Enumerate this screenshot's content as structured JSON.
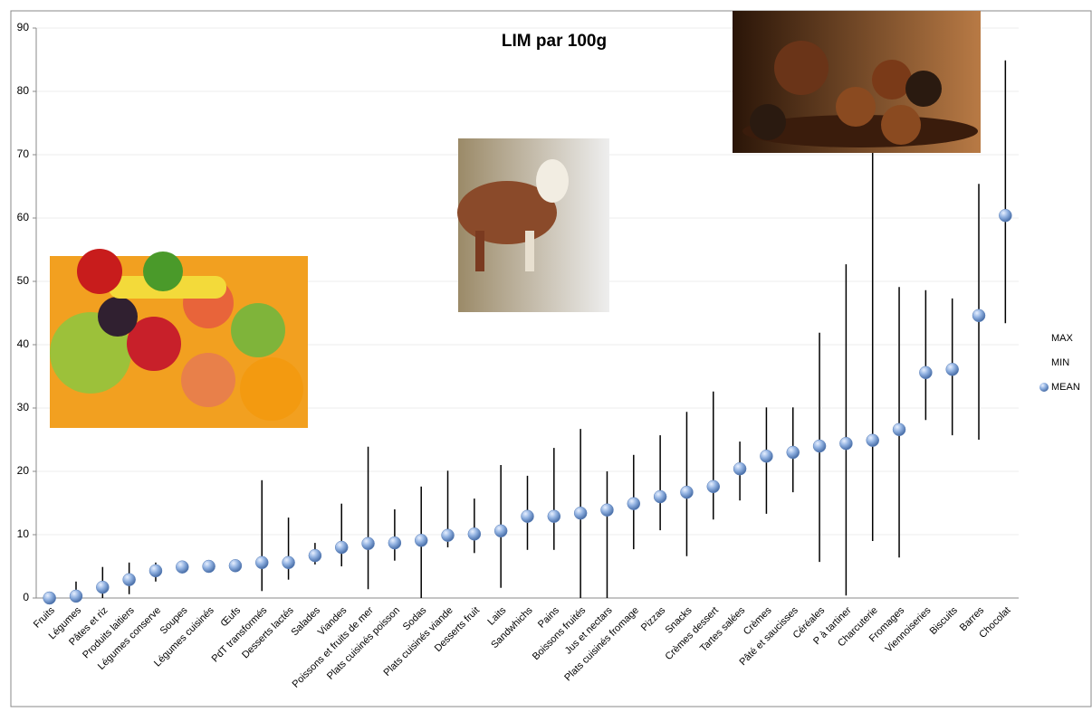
{
  "chart_data": {
    "type": "hilo",
    "title": "LIM par 100g",
    "categories": [
      "Fruits",
      "Légumes",
      "Pâtes et riz",
      "Produits laitiers",
      "Légumes conserve",
      "Soupes",
      "Légumes cuisinés",
      "Œufs",
      "PdT transformés",
      "Desserts lactés",
      "Salades",
      "Viandes",
      "Poissons et fruits de mer",
      "Plats cuisinés poisson",
      "Sodas",
      "Plats cuisinés viande",
      "Desserts fruit",
      "Laits",
      "Sandwhichs",
      "Pains",
      "Boissons fruités",
      "Jus et nectars",
      "Plats cuisinés fromage",
      "Pizzas",
      "Snacks",
      "Crèmes dessert",
      "Tartes salées",
      "Crèmes",
      "Pâté et saucisses",
      "Céréales",
      "P à tartiner",
      "Charcuterie",
      "Fromages",
      "Viennoiseries",
      "Biscuits",
      "Barres",
      "Chocolat"
    ],
    "series": [
      {
        "name": "MAX",
        "color": "#000000",
        "values": [
          0,
          2.6,
          4.9,
          5.6,
          5.6,
          5.0,
          5.2,
          5.3,
          18.6,
          12.7,
          8.7,
          14.9,
          23.9,
          14.0,
          17.6,
          20.1,
          15.7,
          21.0,
          19.3,
          23.7,
          26.7,
          20.0,
          22.6,
          25.7,
          29.4,
          32.6,
          24.7,
          30.1,
          30.1,
          41.9,
          52.7,
          72,
          49.1,
          48.6,
          47.3,
          65.4,
          84.9
        ]
      },
      {
        "name": "MIN",
        "color": "#000000",
        "values": [
          0,
          0,
          0,
          0.6,
          2.6,
          4.8,
          4.9,
          5.0,
          1.1,
          2.9,
          5.3,
          5.0,
          1.4,
          5.9,
          0,
          8.0,
          7.1,
          1.6,
          7.6,
          7.6,
          0,
          0,
          7.7,
          10.7,
          6.6,
          12.4,
          15.4,
          13.3,
          16.7,
          5.7,
          0.4,
          9.0,
          6.4,
          28.1,
          25.7,
          25.0,
          43.4
        ]
      },
      {
        "name": "MEAN",
        "color": "#7fa6dc",
        "values": [
          0,
          0.3,
          1.7,
          2.9,
          4.3,
          4.9,
          5.0,
          5.1,
          5.6,
          5.6,
          6.7,
          8.0,
          8.6,
          8.7,
          9.1,
          9.9,
          10.1,
          10.6,
          12.9,
          12.9,
          13.4,
          13.9,
          14.9,
          16.0,
          16.7,
          17.6,
          20.4,
          22.4,
          23.0,
          24.0,
          24.4,
          24.9,
          26.6,
          35.6,
          36.1,
          44.6,
          60.4
        ]
      }
    ],
    "ylim": [
      0,
      90
    ],
    "yticks": [
      0,
      10,
      20,
      30,
      40,
      50,
      60,
      70,
      80,
      90
    ],
    "grid": true,
    "legend": "right"
  }
}
